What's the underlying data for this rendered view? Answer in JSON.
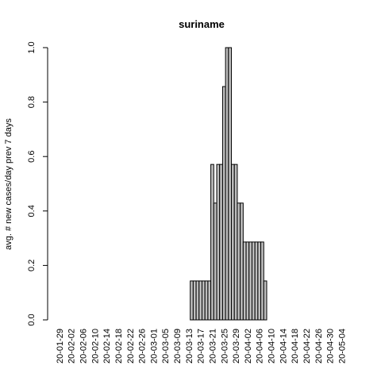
{
  "chart_data": {
    "type": "bar",
    "title": "suriname",
    "ylabel": "avg. # new cases/day prev  7  days",
    "xlabel": "",
    "ylim": [
      0,
      1
    ],
    "yticks": [
      "0.0",
      "0.2",
      "0.4",
      "0.6",
      "0.8",
      "1.0"
    ],
    "x_tick_labels": [
      "20-01-29",
      "20-02-02",
      "20-02-06",
      "20-02-10",
      "20-02-14",
      "20-02-18",
      "20-02-22",
      "20-02-26",
      "20-03-01",
      "20-03-05",
      "20-03-09",
      "20-03-13",
      "20-03-17",
      "20-03-21",
      "20-03-25",
      "20-03-29",
      "20-04-02",
      "20-04-06",
      "20-04-10",
      "20-04-14",
      "20-04-18",
      "20-04-22",
      "20-04-26",
      "20-04-30",
      "20-05-04"
    ],
    "categories": [
      "20-01-29",
      "20-01-30",
      "20-01-31",
      "20-02-01",
      "20-02-02",
      "20-02-03",
      "20-02-04",
      "20-02-05",
      "20-02-06",
      "20-02-07",
      "20-02-08",
      "20-02-09",
      "20-02-10",
      "20-02-11",
      "20-02-12",
      "20-02-13",
      "20-02-14",
      "20-02-15",
      "20-02-16",
      "20-02-17",
      "20-02-18",
      "20-02-19",
      "20-02-20",
      "20-02-21",
      "20-02-22",
      "20-02-23",
      "20-02-24",
      "20-02-25",
      "20-02-26",
      "20-02-27",
      "20-02-28",
      "20-02-29",
      "20-03-01",
      "20-03-02",
      "20-03-03",
      "20-03-04",
      "20-03-05",
      "20-03-06",
      "20-03-07",
      "20-03-08",
      "20-03-09",
      "20-03-10",
      "20-03-11",
      "20-03-12",
      "20-03-13",
      "20-03-14",
      "20-03-15",
      "20-03-16",
      "20-03-17",
      "20-03-18",
      "20-03-19",
      "20-03-20",
      "20-03-21",
      "20-03-22",
      "20-03-23",
      "20-03-24",
      "20-03-25",
      "20-03-26",
      "20-03-27",
      "20-03-28",
      "20-03-29",
      "20-03-30",
      "20-03-31",
      "20-04-01",
      "20-04-02",
      "20-04-03",
      "20-04-04",
      "20-04-05",
      "20-04-06",
      "20-04-07",
      "20-04-08",
      "20-04-09",
      "20-04-10",
      "20-04-11",
      "20-04-12",
      "20-04-13",
      "20-04-14",
      "20-04-15",
      "20-04-16",
      "20-04-17",
      "20-04-18",
      "20-04-19",
      "20-04-20",
      "20-04-21",
      "20-04-22",
      "20-04-23",
      "20-04-24",
      "20-04-25",
      "20-04-26",
      "20-04-27",
      "20-04-28",
      "20-04-29",
      "20-04-30",
      "20-05-01",
      "20-05-02",
      "20-05-03",
      "20-05-04",
      "20-05-05"
    ],
    "values": [
      0,
      0,
      0,
      0,
      0,
      0,
      0,
      0,
      0,
      0,
      0,
      0,
      0,
      0,
      0,
      0,
      0,
      0,
      0,
      0,
      0,
      0,
      0,
      0,
      0,
      0,
      0,
      0,
      0,
      0,
      0,
      0,
      0,
      0,
      0,
      0,
      0,
      0,
      0,
      0,
      0,
      0,
      0,
      0,
      0,
      0.143,
      0.143,
      0.143,
      0.143,
      0.143,
      0.143,
      0.143,
      0.571,
      0.429,
      0.571,
      0.571,
      0.857,
      1.0,
      1.0,
      0.571,
      0.571,
      0.429,
      0.429,
      0.286,
      0.286,
      0.286,
      0.286,
      0.286,
      0.286,
      0.286,
      0.143,
      0,
      0,
      0,
      0,
      0,
      0,
      0,
      0,
      0,
      0,
      0,
      0,
      0,
      0,
      0,
      0,
      0,
      0,
      0,
      0,
      0,
      0,
      0,
      0,
      0,
      0,
      0
    ],
    "colors": {
      "bar_fill": "#bebebe",
      "bar_stroke": "#000000"
    }
  }
}
